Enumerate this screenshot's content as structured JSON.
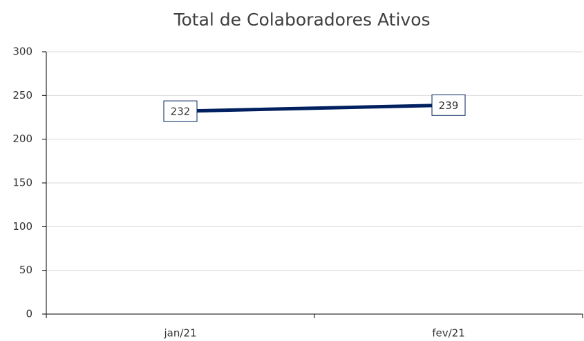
{
  "chart_data": {
    "type": "line",
    "title": "Total de Colaboradores Ativos",
    "categories": [
      "jan/21",
      "fev/21"
    ],
    "values": [
      232,
      239
    ],
    "color": "#002060",
    "ylim": [
      0,
      300
    ],
    "yticks": [
      0,
      50,
      100,
      150,
      200,
      250,
      300
    ],
    "grid": true
  }
}
